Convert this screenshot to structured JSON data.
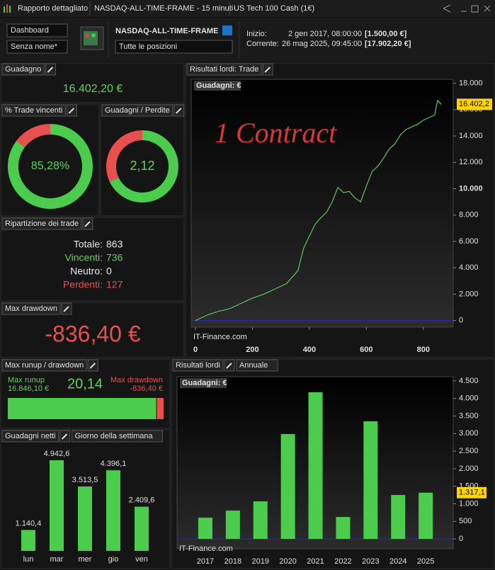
{
  "window": {
    "title": "Rapporto dettagliato",
    "tabs": [
      "NASDAQ-ALL-TIME-FRAME - 15 minuti",
      "US Tech 100 Cash (1€)"
    ]
  },
  "toolbar": {
    "view": "Dashboard",
    "layout": "Senza nome*",
    "system": "NASDAQ-ALL-TIME-FRAME",
    "positions": "Tutte le posizioni",
    "start_label": "Inizio:",
    "start_date": "2 gen 2017, 08:00:00",
    "start_capital": "[1.500,00 €]",
    "current_label": "Corrente:",
    "current_date": "26 mag 2025, 09:45:00",
    "current_capital": "[17.902,20 €]"
  },
  "panels": {
    "gain": {
      "title": "Guadagno",
      "value": "16.402,20 €"
    },
    "win_rate": {
      "title": "% Trade vincenti",
      "value": 85.28,
      "label": "85,28%"
    },
    "gain_loss": {
      "title": "Guadagni / Perdite",
      "value": 2.12,
      "label": "2,12"
    },
    "breakdown": {
      "title": "Ripartizione dei trade",
      "rows": [
        {
          "label": "Totale:",
          "value": 863
        },
        {
          "label": "Vincenti:",
          "value": 736
        },
        {
          "label": "Neutro:",
          "value": 0
        },
        {
          "label": "Perdenti:",
          "value": 127
        }
      ]
    },
    "max_drawdown": {
      "title": "Max drawdown",
      "value": "-836,40 €"
    },
    "runup": {
      "title": "Max runup / drawdown",
      "runup_label": "Max runup",
      "runup": 16846.1,
      "runup_text": "16.846,10 €",
      "ratio": "20,14",
      "drawdown_label": "Max drawdown",
      "drawdown": -836.4,
      "drawdown_text": "-836,40 €"
    }
  },
  "chart_data": [
    {
      "type": "line",
      "title": "Risultati lordi: Trade",
      "y_label": "Guadagni: €",
      "annotation": "1 Contract",
      "watermark": "IT-Finance.com",
      "color": "#5cc85c",
      "x": [
        0,
        40,
        80,
        120,
        160,
        200,
        240,
        280,
        320,
        360,
        380,
        400,
        420,
        440,
        460,
        480,
        500,
        520,
        540,
        560,
        580,
        600,
        620,
        640,
        660,
        680,
        700,
        720,
        740,
        760,
        780,
        800,
        820,
        840,
        850,
        863
      ],
      "values": [
        0,
        400,
        700,
        900,
        1300,
        1700,
        2000,
        2400,
        2800,
        3800,
        5500,
        6400,
        7300,
        7800,
        8200,
        9000,
        10100,
        9700,
        9800,
        9300,
        9000,
        10200,
        11300,
        11700,
        12300,
        13000,
        13400,
        14100,
        14500,
        14700,
        14900,
        15200,
        15400,
        15600,
        16700,
        16402.2
      ],
      "last_label": "16.402,2",
      "xlim": [
        -15,
        905
      ],
      "ylim": [
        -500,
        18300
      ],
      "xticks": [
        0,
        200,
        400,
        600,
        800
      ],
      "yticks": [
        0,
        {
          "value": 2000,
          "label": "2.000"
        },
        {
          "value": 4000,
          "label": "4.000"
        },
        {
          "value": 6000,
          "label": "6.000"
        },
        {
          "value": 8000,
          "label": "8.000"
        },
        {
          "value": 10000,
          "label": "10.000"
        },
        {
          "value": 12000,
          "label": "12.000"
        },
        {
          "value": 14000,
          "label": "14.000"
        },
        {
          "value": 16000,
          "label": "16.000"
        },
        {
          "value": 18000,
          "label": "18.000"
        }
      ]
    },
    {
      "type": "bar",
      "title": "Guadagni netti",
      "mode": "Giorno della settimana",
      "categories": [
        "lun",
        "mar",
        "mer",
        "gio",
        "ven"
      ],
      "values": [
        1140.4,
        4942.6,
        3513.5,
        4396.1,
        2409.6
      ],
      "value_labels": [
        "1.140,4",
        "4.942,6",
        "3.513,5",
        "4.396,1",
        "2.409,6"
      ],
      "color": "#4ccc4c"
    },
    {
      "type": "bar",
      "title": "Risultati lordi",
      "mode": "Annuale",
      "y_label": "Guadagni: €",
      "watermark": "IT-Finance.com",
      "color": "#4ccc4c",
      "categories": [
        "2017",
        "2018",
        "2019",
        "2020",
        "2021",
        "2022",
        "2023",
        "2024",
        "2025"
      ],
      "values": [
        605,
        807,
        1070,
        2987,
        4177,
        625,
        3350,
        1251,
        1317.1
      ],
      "last_label": "1.317,1",
      "ylim": [
        -280,
        4620
      ],
      "yticks": [
        0,
        500,
        {
          "value": 1000,
          "label": "1.000"
        },
        {
          "value": 1500,
          "label": "1.500"
        },
        {
          "value": 2000,
          "label": "2.000"
        },
        {
          "value": 2500,
          "label": "2.500"
        },
        {
          "value": 3000,
          "label": "3.000"
        },
        {
          "value": 3500,
          "label": "3.500"
        },
        {
          "value": 4000,
          "label": "4.000"
        },
        {
          "value": 4500,
          "label": "4.500"
        }
      ]
    }
  ]
}
